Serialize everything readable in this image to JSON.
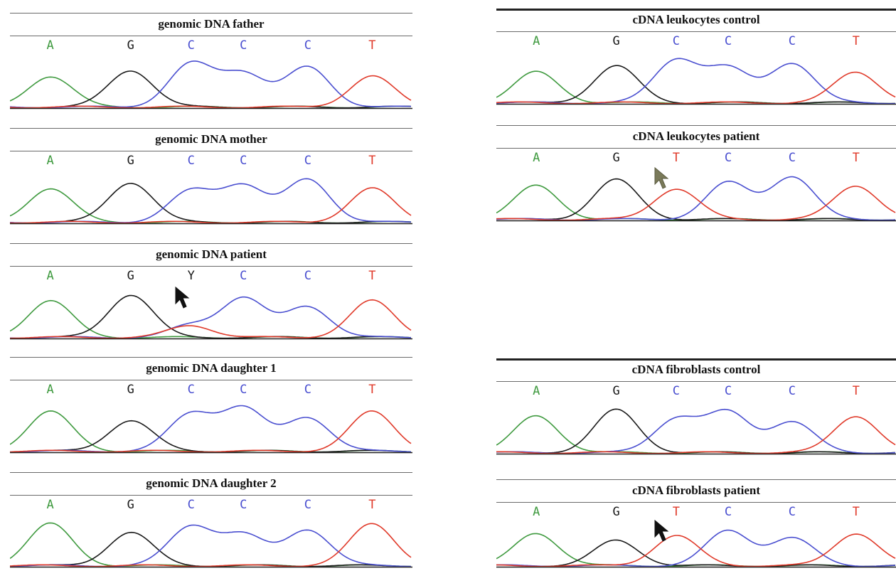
{
  "colors": {
    "A": "#3f9a3f",
    "G": "#1a1a1a",
    "C": "#4a4fd0",
    "T": "#e03a2a",
    "Y": "#1a1a1a"
  },
  "panels": [
    {
      "id": "father",
      "title": "genomic DNA father",
      "bases": [
        "A",
        "G",
        "C",
        "C",
        "C",
        "T"
      ]
    },
    {
      "id": "mother",
      "title": "genomic DNA mother",
      "bases": [
        "A",
        "G",
        "C",
        "C",
        "C",
        "T"
      ]
    },
    {
      "id": "patient",
      "title": "genomic DNA patient",
      "bases": [
        "A",
        "G",
        "Y",
        "C",
        "C",
        "T"
      ]
    },
    {
      "id": "daughter1",
      "title": "genomic DNA daughter 1",
      "bases": [
        "A",
        "G",
        "C",
        "C",
        "C",
        "T"
      ]
    },
    {
      "id": "daughter2",
      "title": "genomic DNA daughter 2",
      "bases": [
        "A",
        "G",
        "C",
        "C",
        "C",
        "T"
      ]
    },
    {
      "id": "leuk-control",
      "title": "cDNA leukocytes control",
      "bases": [
        "A",
        "G",
        "C",
        "C",
        "C",
        "T"
      ]
    },
    {
      "id": "leuk-patient",
      "title": "cDNA leukocytes patient",
      "bases": [
        "A",
        "G",
        "T",
        "C",
        "C",
        "T"
      ]
    },
    {
      "id": "fib-control",
      "title": "cDNA fibroblasts control",
      "bases": [
        "A",
        "G",
        "C",
        "C",
        "C",
        "T"
      ]
    },
    {
      "id": "fib-patient",
      "title": "cDNA fibroblasts patient",
      "bases": [
        "A",
        "G",
        "T",
        "C",
        "C",
        "T"
      ]
    }
  ]
}
